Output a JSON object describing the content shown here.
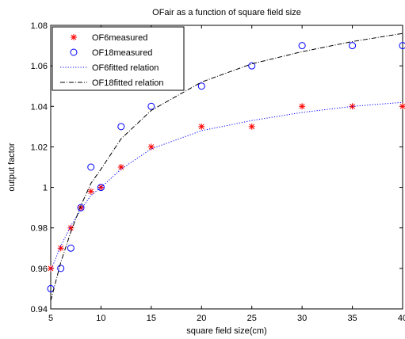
{
  "chart_data": {
    "type": "scatter",
    "title": "OFair as a function of square field size",
    "xlabel": "square field size(cm)",
    "ylabel": "output factor",
    "xlim": [
      5,
      40
    ],
    "ylim": [
      0.94,
      1.08
    ],
    "xticks": [
      "5",
      "10",
      "15",
      "20",
      "25",
      "30",
      "35",
      "40"
    ],
    "yticks": [
      "0.94",
      "0.96",
      "0.98",
      "1",
      "1.02",
      "1.04",
      "1.06",
      "1.08"
    ],
    "grid": false,
    "legend_position": "top-left",
    "series": [
      {
        "name": "OF6measured",
        "kind": "marker",
        "marker": "asterisk",
        "color": "#ff0000",
        "x": [
          5,
          6,
          7,
          8,
          9,
          10,
          12,
          15,
          20,
          25,
          30,
          35,
          40
        ],
        "y": [
          0.96,
          0.97,
          0.98,
          0.99,
          0.998,
          1.0,
          1.01,
          1.02,
          1.03,
          1.03,
          1.04,
          1.04,
          1.04
        ]
      },
      {
        "name": "OF18measured",
        "kind": "marker",
        "marker": "circle",
        "color": "#0000ff",
        "x": [
          5,
          6,
          7,
          8,
          9,
          10,
          12,
          15,
          20,
          25,
          30,
          35,
          40
        ],
        "y": [
          0.95,
          0.96,
          0.97,
          0.99,
          1.01,
          1.0,
          1.03,
          1.04,
          1.05,
          1.06,
          1.07,
          1.07,
          1.07
        ]
      },
      {
        "name": "OF6fitted relation",
        "kind": "line",
        "dash": "dotted",
        "color": "#0000ff",
        "x": [
          5,
          6,
          7,
          8,
          9,
          10,
          12,
          15,
          20,
          25,
          30,
          35,
          40
        ],
        "y": [
          0.959,
          0.971,
          0.981,
          0.989,
          0.996,
          1.0,
          1.009,
          1.019,
          1.028,
          1.033,
          1.037,
          1.04,
          1.042
        ]
      },
      {
        "name": "OF18fitted relation",
        "kind": "line",
        "dash": "dashdot",
        "color": "#000000",
        "x": [
          5,
          6,
          7,
          8,
          9,
          10,
          12,
          15,
          20,
          25,
          30,
          35,
          40
        ],
        "y": [
          0.944,
          0.963,
          0.978,
          0.991,
          1.002,
          1.009,
          1.024,
          1.038,
          1.052,
          1.061,
          1.067,
          1.072,
          1.076
        ]
      }
    ]
  }
}
